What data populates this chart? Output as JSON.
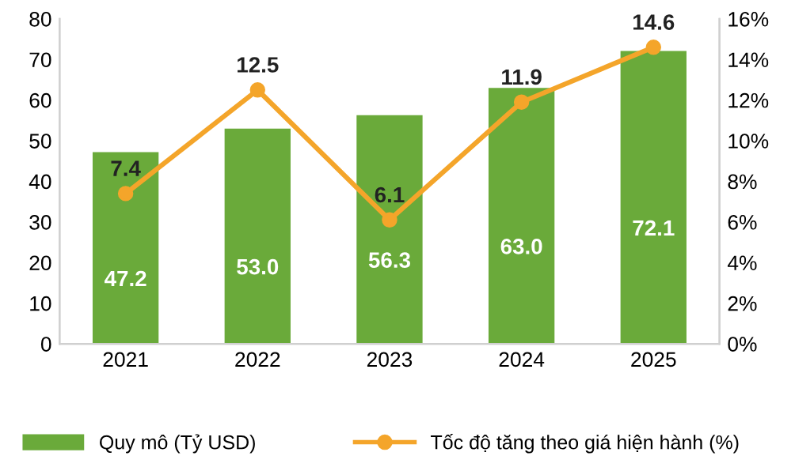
{
  "chart_data": {
    "type": "bar",
    "categories": [
      "2021",
      "2022",
      "2023",
      "2024",
      "2025"
    ],
    "series": [
      {
        "name": "Quy mô (Tỷ USD)",
        "color": "#6aaa3a",
        "values": [
          47.2,
          53.0,
          56.3,
          63.0,
          72.1
        ],
        "value_labels": [
          "47.2",
          "53.0",
          "56.3",
          "63.0",
          "72.1"
        ]
      },
      {
        "name": "Tốc độ tăng theo giá hiện hành (%)",
        "type": "line",
        "axis": "y2",
        "color": "#f4a52a",
        "marker": "circle",
        "values": [
          7.4,
          12.5,
          6.1,
          11.9,
          14.6
        ],
        "value_labels": [
          "7.4",
          "12.5",
          "6.1",
          "11.9",
          "14.6"
        ]
      }
    ],
    "ylim": [
      0,
      80
    ],
    "yticks": [
      0,
      10,
      20,
      30,
      40,
      50,
      60,
      70,
      80
    ],
    "y2lim": [
      0,
      16
    ],
    "y2ticks": [
      {
        "value": 0,
        "label": "0%"
      },
      {
        "value": 2,
        "label": "2%"
      },
      {
        "value": 4,
        "label": "4%"
      },
      {
        "value": 6,
        "label": "6%"
      },
      {
        "value": 8,
        "label": "8%"
      },
      {
        "value": 10,
        "label": "10%"
      },
      {
        "value": 12,
        "label": "12%"
      },
      {
        "value": 14,
        "label": "14%"
      },
      {
        "value": 16,
        "label": "16%"
      }
    ],
    "legend": "bottom",
    "grid": false
  }
}
